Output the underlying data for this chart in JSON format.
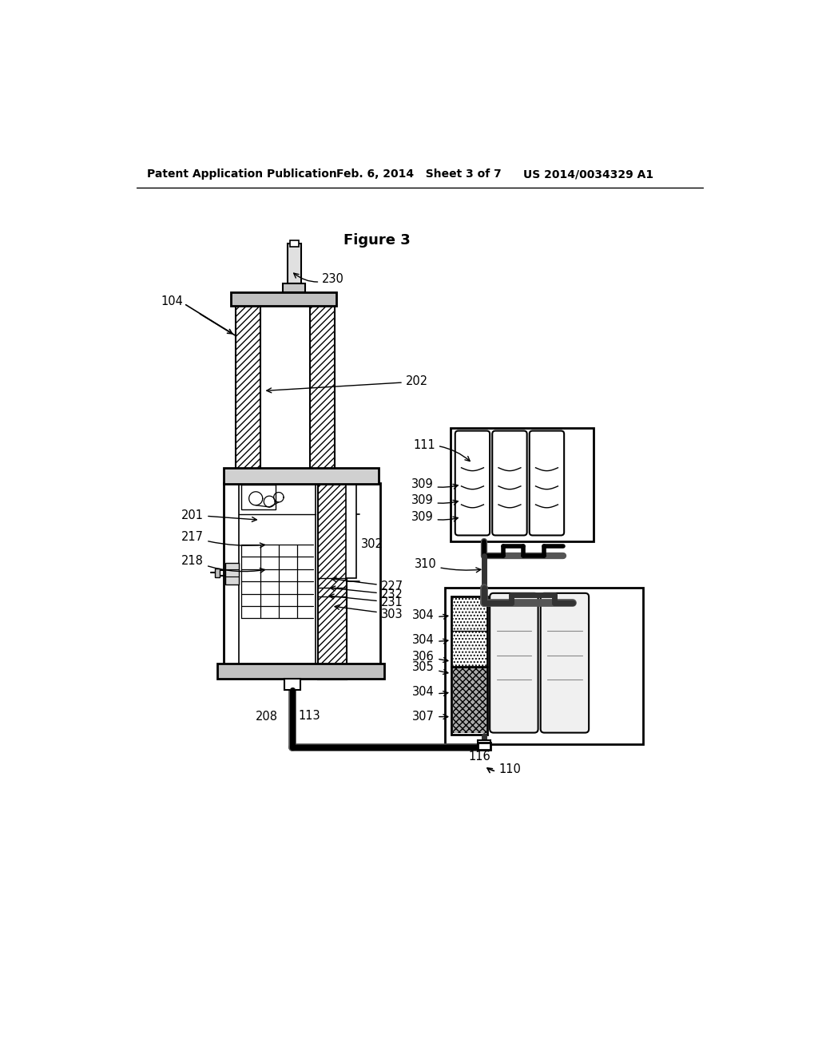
{
  "bg_color": "#ffffff",
  "header_left": "Patent Application Publication",
  "header_mid": "Feb. 6, 2014   Sheet 3 of 7",
  "header_right": "US 2014/0034329 A1",
  "figure_title": "Figure 3"
}
